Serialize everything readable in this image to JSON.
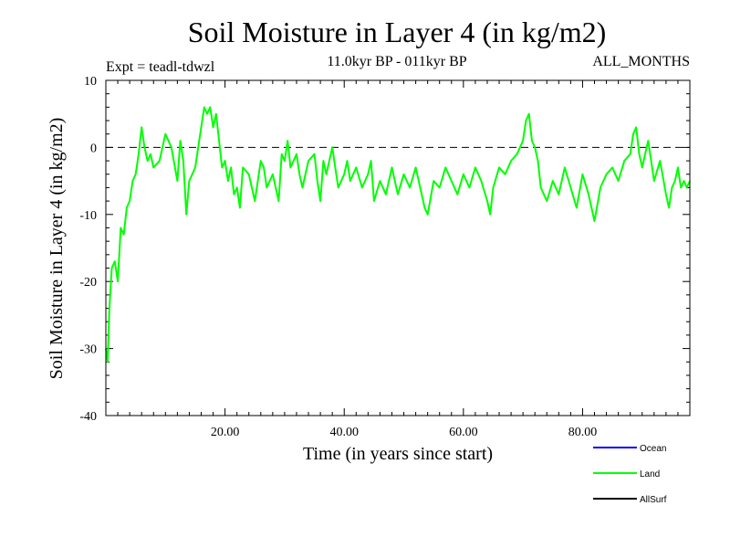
{
  "chart_data": {
    "type": "line",
    "title": "Soil Moisture in Layer 4 (in kg/m2)",
    "subtitle": "11.0kyr BP - 011kyr BP",
    "experiment": "Expt = teadl-tdwzl",
    "months_label": "ALL_MONTHS",
    "xlabel": "Time (in years since start)",
    "ylabel": "Soil Moisture in Layer 4 (in kg/m2)",
    "xlim": [
      0,
      98
    ],
    "ylim": [
      -40,
      10
    ],
    "x_ticks": [
      20,
      40,
      60,
      80
    ],
    "x_tick_labels": [
      "20.00",
      "40.00",
      "60.00",
      "80.00"
    ],
    "y_ticks": [
      10,
      0,
      -10,
      -20,
      -30,
      -40
    ],
    "y_tick_labels": [
      "10",
      "0",
      "-10",
      "-20",
      "-30",
      "-40"
    ],
    "reference_line": 0,
    "legend": [
      {
        "name": "Ocean",
        "color": "#0000ff"
      },
      {
        "name": "Land",
        "color": "#00ff00"
      },
      {
        "name": "AllSurf",
        "color": "#000000"
      }
    ],
    "series": [
      {
        "name": "Land",
        "color": "#00ff00",
        "points": [
          [
            0.0,
            -30
          ],
          [
            0.3,
            -32
          ],
          [
            0.6,
            -24
          ],
          [
            1.0,
            -18
          ],
          [
            1.5,
            -17
          ],
          [
            2.0,
            -20
          ],
          [
            2.5,
            -12
          ],
          [
            3.0,
            -13
          ],
          [
            3.5,
            -9
          ],
          [
            4.0,
            -8
          ],
          [
            4.5,
            -5
          ],
          [
            5.0,
            -4
          ],
          [
            5.5,
            -1
          ],
          [
            6.0,
            3
          ],
          [
            6.5,
            0
          ],
          [
            7.0,
            -2
          ],
          [
            7.5,
            -1
          ],
          [
            8.0,
            -3
          ],
          [
            9.0,
            -2
          ],
          [
            10.0,
            2
          ],
          [
            11.0,
            0
          ],
          [
            12.0,
            -5
          ],
          [
            12.5,
            1
          ],
          [
            13.0,
            -2
          ],
          [
            13.5,
            -10
          ],
          [
            14.0,
            -5
          ],
          [
            14.5,
            -4
          ],
          [
            15.0,
            -3
          ],
          [
            15.5,
            0
          ],
          [
            16.0,
            3
          ],
          [
            16.5,
            6
          ],
          [
            17.0,
            5
          ],
          [
            17.5,
            6
          ],
          [
            18.0,
            3
          ],
          [
            18.5,
            5
          ],
          [
            19.0,
            1
          ],
          [
            19.5,
            -3
          ],
          [
            20.0,
            -2
          ],
          [
            20.5,
            -5
          ],
          [
            21.0,
            -3
          ],
          [
            21.5,
            -7
          ],
          [
            22.0,
            -6
          ],
          [
            22.5,
            -9
          ],
          [
            23.0,
            -3
          ],
          [
            24.0,
            -4
          ],
          [
            25.0,
            -8
          ],
          [
            26.0,
            -2
          ],
          [
            26.5,
            -3
          ],
          [
            27.0,
            -6
          ],
          [
            28.0,
            -4
          ],
          [
            29.0,
            -8
          ],
          [
            29.5,
            -1
          ],
          [
            30.0,
            -2
          ],
          [
            30.5,
            1
          ],
          [
            31.0,
            -3
          ],
          [
            32.0,
            -1
          ],
          [
            32.5,
            -4
          ],
          [
            33.0,
            -6
          ],
          [
            34.0,
            -2
          ],
          [
            35.0,
            -1
          ],
          [
            35.5,
            -5
          ],
          [
            36.0,
            -8
          ],
          [
            36.5,
            -2
          ],
          [
            37.0,
            -4
          ],
          [
            38.0,
            0
          ],
          [
            38.5,
            -3
          ],
          [
            39.0,
            -6
          ],
          [
            40.0,
            -4
          ],
          [
            40.5,
            -2
          ],
          [
            41.0,
            -5
          ],
          [
            42.0,
            -3
          ],
          [
            43.0,
            -6
          ],
          [
            44.0,
            -4
          ],
          [
            44.5,
            -2
          ],
          [
            45.0,
            -8
          ],
          [
            46.0,
            -5
          ],
          [
            47.0,
            -7
          ],
          [
            48.0,
            -3
          ],
          [
            48.5,
            -5
          ],
          [
            49.0,
            -7
          ],
          [
            50.0,
            -4
          ],
          [
            51.0,
            -6
          ],
          [
            52.0,
            -3
          ],
          [
            53.0,
            -7
          ],
          [
            53.5,
            -9
          ],
          [
            54.0,
            -10
          ],
          [
            55.0,
            -5
          ],
          [
            56.0,
            -6
          ],
          [
            57.0,
            -3
          ],
          [
            58.0,
            -5
          ],
          [
            59.0,
            -7
          ],
          [
            60.0,
            -4
          ],
          [
            61.0,
            -6
          ],
          [
            62.0,
            -3
          ],
          [
            63.0,
            -5
          ],
          [
            64.0,
            -8
          ],
          [
            64.5,
            -10
          ],
          [
            65.0,
            -6
          ],
          [
            66.0,
            -3
          ],
          [
            67.0,
            -4
          ],
          [
            68.0,
            -2
          ],
          [
            69.0,
            -1
          ],
          [
            70.0,
            1
          ],
          [
            70.5,
            4
          ],
          [
            71.0,
            5
          ],
          [
            71.5,
            1
          ],
          [
            72.0,
            0
          ],
          [
            72.5,
            -2
          ],
          [
            73.0,
            -6
          ],
          [
            74.0,
            -8
          ],
          [
            75.0,
            -5
          ],
          [
            76.0,
            -7
          ],
          [
            77.0,
            -3
          ],
          [
            78.0,
            -6
          ],
          [
            79.0,
            -9
          ],
          [
            80.0,
            -4
          ],
          [
            81.0,
            -7
          ],
          [
            82.0,
            -11
          ],
          [
            83.0,
            -6
          ],
          [
            84.0,
            -4
          ],
          [
            85.0,
            -3
          ],
          [
            86.0,
            -5
          ],
          [
            87.0,
            -2
          ],
          [
            88.0,
            -1
          ],
          [
            88.5,
            2
          ],
          [
            89.0,
            3
          ],
          [
            89.5,
            -1
          ],
          [
            90.0,
            -3
          ],
          [
            90.5,
            -1
          ],
          [
            91.0,
            1
          ],
          [
            91.5,
            -2
          ],
          [
            92.0,
            -5
          ],
          [
            93.0,
            -2
          ],
          [
            94.0,
            -7
          ],
          [
            94.5,
            -9
          ],
          [
            95.0,
            -6
          ],
          [
            95.5,
            -5
          ],
          [
            96.0,
            -3
          ],
          [
            96.5,
            -6
          ],
          [
            97.0,
            -5
          ],
          [
            97.5,
            -6
          ],
          [
            98.0,
            -5
          ]
        ]
      }
    ]
  }
}
